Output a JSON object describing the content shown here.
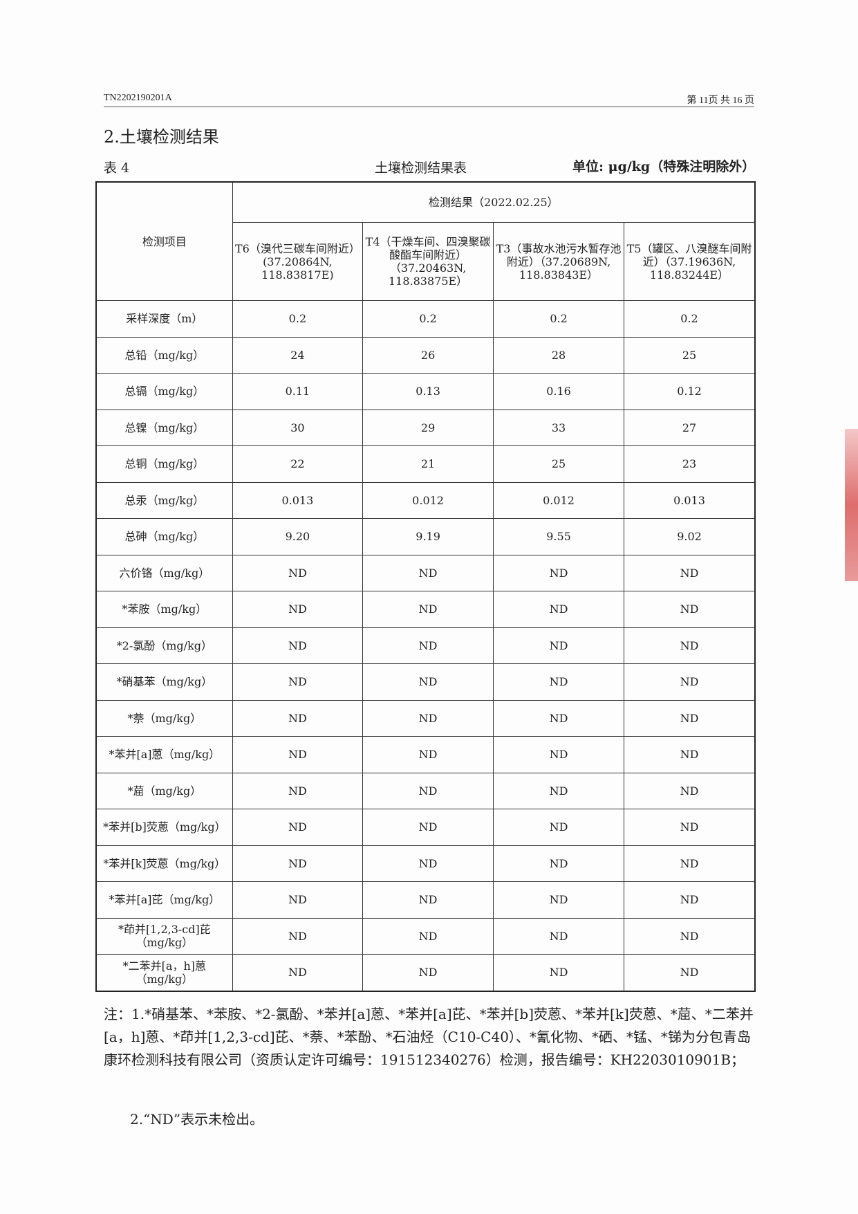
{
  "header": {
    "report_no": "TN2202190201A",
    "page": "第 11页  共 16 页"
  },
  "section_title": "2.土壤检测结果",
  "table_label": "表 4",
  "table_title": "土壤检测结果表",
  "unit": "单位: μg/kg（特殊注明除外）",
  "table": {
    "item_header": "检测项目",
    "group_header": "检测结果（2022.02.25）",
    "columns": [
      "T6（溴代三碳车间附近）(37.20864N, 118.83817E)",
      "T4（干燥车间、四溴聚碳酸酯车间附近）（37.20463N, 118.83875E）",
      "T3（事故水池污水暂存池附近）（37.20689N, 118.83843E）",
      "T5（罐区、八溴醚车间附近）（37.19636N, 118.83244E）"
    ],
    "rows": [
      {
        "item": "采样深度（m）",
        "values": [
          "0.2",
          "0.2",
          "0.2",
          "0.2"
        ]
      },
      {
        "item": "总铅（mg/kg）",
        "values": [
          "24",
          "26",
          "28",
          "25"
        ]
      },
      {
        "item": "总镉（mg/kg）",
        "values": [
          "0.11",
          "0.13",
          "0.16",
          "0.12"
        ]
      },
      {
        "item": "总镍（mg/kg）",
        "values": [
          "30",
          "29",
          "33",
          "27"
        ]
      },
      {
        "item": "总铜（mg/kg）",
        "values": [
          "22",
          "21",
          "25",
          "23"
        ]
      },
      {
        "item": "总汞（mg/kg）",
        "values": [
          "0.013",
          "0.012",
          "0.012",
          "0.013"
        ]
      },
      {
        "item": "总砷（mg/kg）",
        "values": [
          "9.20",
          "9.19",
          "9.55",
          "9.02"
        ]
      },
      {
        "item": "六价铬（mg/kg）",
        "values": [
          "ND",
          "ND",
          "ND",
          "ND"
        ]
      },
      {
        "item": "*苯胺（mg/kg）",
        "values": [
          "ND",
          "ND",
          "ND",
          "ND"
        ]
      },
      {
        "item": "*2-氯酚（mg/kg）",
        "values": [
          "ND",
          "ND",
          "ND",
          "ND"
        ]
      },
      {
        "item": "*硝基苯（mg/kg）",
        "values": [
          "ND",
          "ND",
          "ND",
          "ND"
        ]
      },
      {
        "item": "*萘（mg/kg）",
        "values": [
          "ND",
          "ND",
          "ND",
          "ND"
        ]
      },
      {
        "item": "*苯并[a]蒽（mg/kg）",
        "values": [
          "ND",
          "ND",
          "ND",
          "ND"
        ]
      },
      {
        "item": "*䓛（mg/kg）",
        "values": [
          "ND",
          "ND",
          "ND",
          "ND"
        ]
      },
      {
        "item": "*苯并[b]荧蒽（mg/kg）",
        "values": [
          "ND",
          "ND",
          "ND",
          "ND"
        ]
      },
      {
        "item": "*苯并[k]荧蒽（mg/kg）",
        "values": [
          "ND",
          "ND",
          "ND",
          "ND"
        ]
      },
      {
        "item": "*苯并[a]芘（mg/kg）",
        "values": [
          "ND",
          "ND",
          "ND",
          "ND"
        ]
      },
      {
        "item": "*茚并[1,2,3-cd]芘（mg/kg）",
        "values": [
          "ND",
          "ND",
          "ND",
          "ND"
        ]
      },
      {
        "item": "*二苯并[a，h]蒽（mg/kg）",
        "values": [
          "ND",
          "ND",
          "ND",
          "ND"
        ]
      }
    ]
  },
  "notes": {
    "note1": "注：1.*硝基苯、*苯胺、*2-氯酚、*苯并[a]蒽、*苯并[a]芘、*苯并[b]荧蒽、*苯并[k]荧蒽、*䓛、*二苯并[a，h]蒽、*茚并[1,2,3-cd]芘、*萘、*苯酚、*石油烃（C10-C40）、*氰化物、*硒、*锰、*锑为分包青岛康环检测科技有限公司（资质认定许可编号：191512340276）检测，报告编号：KH2203010901B；",
    "note2": "2.“ND”表示未检出。"
  }
}
